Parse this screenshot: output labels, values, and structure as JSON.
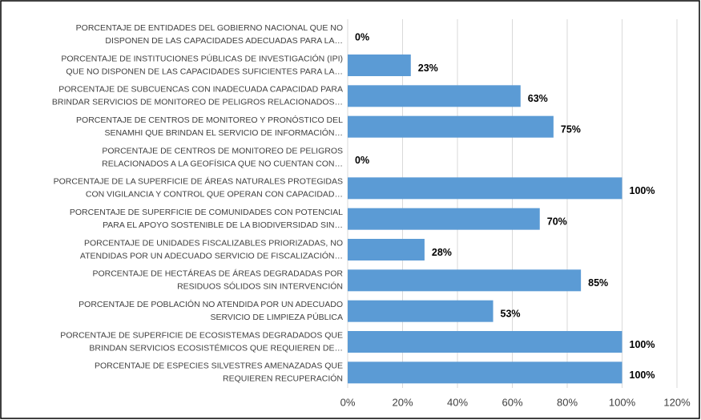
{
  "chart_data": {
    "type": "barh",
    "categories": [
      [
        "PORCENTAJE DE ENTIDADES DEL GOBIERNO NACIONAL QUE NO",
        "DISPONEN DE LAS CAPACIDADES ADECUADAS PARA LA…"
      ],
      [
        "PORCENTAJE DE INSTITUCIONES PÚBLICAS DE INVESTIGACIÓN (IPI)",
        "QUE NO DISPONEN DE LAS CAPACIDADES SUFICIENTES PARA LA…"
      ],
      [
        "PORCENTAJE DE SUBCUENCAS CON INADECUADA CAPACIDAD PARA",
        "BRINDAR SERVICIOS DE MONITOREO DE PELIGROS RELACIONADOS…"
      ],
      [
        "PORCENTAJE DE CENTROS DE MONITOREO Y PRONÓSTICO DEL",
        "SENAMHI QUE BRINDAN EL SERVICIO DE INFORMACIÓN…"
      ],
      [
        "PORCENTAJE DE CENTROS DE MONITOREO DE PELIGROS",
        "RELACIONADOS A LA GEOFÍSICA QUE NO CUENTAN CON…"
      ],
      [
        "PORCENTAJE DE LA SUPERFICIE DE ÁREAS NATURALES PROTEGIDAS",
        "CON VIGILANCIA Y CONTROL QUE OPERAN CON CAPACIDAD…"
      ],
      [
        "PORCENTAJE DE SUPERFICIE DE COMUNIDADES CON POTENCIAL",
        "PARA EL APOYO SOSTENIBLE DE LA BIODIVERSIDAD SIN…"
      ],
      [
        "PORCENTAJE DE UNIDADES FISCALIZABLES PRIORIZADAS, NO",
        "ATENDIDAS POR UN ADECUADO SERVICIO DE FISCALIZACIÓN…"
      ],
      [
        "PORCENTAJE DE HECTÁREAS DE ÁREAS DEGRADADAS POR",
        "RESIDUOS SÓLIDOS SIN INTERVENCIÓN"
      ],
      [
        "PORCENTAJE DE POBLACIÓN NO ATENDIDA POR UN ADECUADO",
        "SERVICIO DE LIMPIEZA PÚBLICA"
      ],
      [
        "PORCENTAJE DE SUPERFICIE DE ECOSISTEMAS DEGRADADOS QUE",
        "BRINDAN SERVICIOS ECOSISTÉMICOS QUE REQUIEREN DE…"
      ],
      [
        "PORCENTAJE DE ESPECIES SILVESTRES AMENAZADAS QUE",
        "REQUIEREN RECUPERACIÓN"
      ]
    ],
    "values": [
      0,
      23,
      63,
      75,
      0,
      100,
      70,
      28,
      85,
      53,
      100,
      100
    ],
    "value_labels": [
      "0%",
      "23%",
      "63%",
      "75%",
      "0%",
      "100%",
      "70%",
      "28%",
      "85%",
      "53%",
      "100%",
      "100%"
    ],
    "color": "#5b9bd5",
    "xlim": [
      0,
      120
    ],
    "xticks": [
      {
        "value": 0,
        "label": "0%"
      },
      {
        "value": 20,
        "label": "20%"
      },
      {
        "value": 40,
        "label": "40%"
      },
      {
        "value": 60,
        "label": "60%"
      },
      {
        "value": 80,
        "label": "80%"
      },
      {
        "value": 100,
        "label": "100%"
      },
      {
        "value": 120,
        "label": "120%"
      }
    ],
    "grid": true
  }
}
